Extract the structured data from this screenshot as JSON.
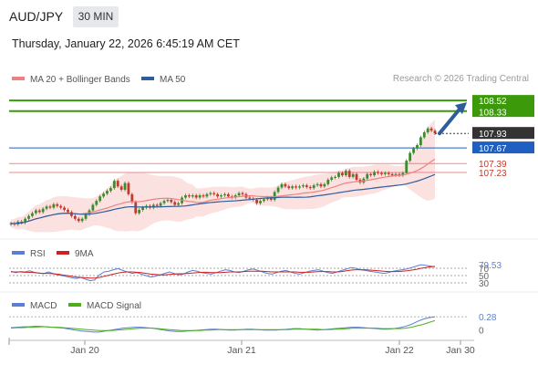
{
  "header": {
    "symbol": "AUD/JPY",
    "timeframe": "30 MIN",
    "datetime": "Thursday, January 22, 2026 6:45:19 AM CET",
    "credit": "Research © 2026 Trading Central"
  },
  "colors": {
    "up": "#3c8a2e",
    "down": "#c0392b",
    "ma20": "#f08080",
    "band_fill": "#fcdcdc",
    "ma50": "#2e5d9c",
    "resistance": "#3c9a0a",
    "support": "#e06060",
    "pivot": "#1f5fbf",
    "arrow": "#2e5d9c",
    "rsi": "#5b7fd4",
    "rsi_ma": "#d02020",
    "macd": "#5b7fd4",
    "macd_signal": "#4caf1a"
  },
  "chart_data": [
    {
      "type": "candlestick",
      "legend": [
        {
          "name": "MA 20 + Bollinger Bands",
          "color": "#f08080"
        },
        {
          "name": "MA 50",
          "color": "#2e5d9c"
        }
      ],
      "ylim": [
        106.2,
        108.62
      ],
      "x_ticks": [
        "Jan 20",
        "Jan 21",
        "Jan 22",
        "Jan 30"
      ],
      "price_labels": [
        {
          "value": 108.52,
          "text": "108.52",
          "style": "resistance-box"
        },
        {
          "value": 108.33,
          "text": "108.33",
          "style": "resistance-box-hidden"
        },
        {
          "value": 107.93,
          "text": "107.93",
          "style": "last-price"
        },
        {
          "value": 107.67,
          "text": "107.67",
          "style": "pivot"
        },
        {
          "value": 107.39,
          "text": "107.39",
          "style": "support"
        },
        {
          "value": 107.23,
          "text": "107.23",
          "style": "support"
        }
      ],
      "levels": {
        "resistance": [
          108.52,
          108.33
        ],
        "pivot": 107.67,
        "support": [
          107.39,
          107.23
        ]
      },
      "closes": [
        106.32,
        106.3,
        106.35,
        106.33,
        106.4,
        106.45,
        106.5,
        106.55,
        106.52,
        106.58,
        106.62,
        106.6,
        106.66,
        106.63,
        106.6,
        106.56,
        106.52,
        106.45,
        106.4,
        106.36,
        106.4,
        106.48,
        106.55,
        106.65,
        106.72,
        106.8,
        106.85,
        106.9,
        106.95,
        107.08,
        106.98,
        106.92,
        107.04,
        106.84,
        106.7,
        106.5,
        106.56,
        106.6,
        106.63,
        106.6,
        106.65,
        106.63,
        106.68,
        106.72,
        106.74,
        106.7,
        106.65,
        106.68,
        106.78,
        106.82,
        106.8,
        106.82,
        106.78,
        106.82,
        106.8,
        106.84,
        106.86,
        106.84,
        106.8,
        106.82,
        106.84,
        106.8,
        106.78,
        106.82,
        106.86,
        106.84,
        106.78,
        106.76,
        106.74,
        106.68,
        106.72,
        106.75,
        106.78,
        106.74,
        106.88,
        106.96,
        107.02,
        106.98,
        106.95,
        106.98,
        106.96,
        106.98,
        107.0,
        106.97,
        106.95,
        107.0,
        107.02,
        106.98,
        107.02,
        107.1,
        107.14,
        107.15,
        107.22,
        107.18,
        107.26,
        107.15,
        107.2,
        107.1,
        107.05,
        107.12,
        107.2,
        107.18,
        107.24,
        107.22,
        107.2,
        107.22,
        107.2,
        107.18,
        107.2,
        107.18,
        107.22,
        107.44,
        107.58,
        107.66,
        107.72,
        107.86,
        107.95,
        108.02,
        107.98,
        107.93
      ]
    },
    {
      "type": "line",
      "legend": [
        {
          "name": "RSI",
          "color": "#5b7fd4"
        },
        {
          "name": "9MA",
          "color": "#d02020"
        }
      ],
      "ylim": [
        20,
        90
      ],
      "y_labels": [
        {
          "value": 79.53,
          "text": "79.53"
        },
        {
          "value": 70,
          "text": "70"
        },
        {
          "value": 50,
          "text": "50"
        },
        {
          "value": 30,
          "text": "30"
        }
      ],
      "rsi": [
        62,
        58,
        61,
        60,
        63,
        59,
        57,
        55,
        60,
        56,
        52,
        50,
        47,
        44,
        42,
        45,
        40,
        36,
        38,
        52,
        60,
        62,
        66,
        69,
        64,
        60,
        56,
        58,
        54,
        50,
        46,
        48,
        52,
        56,
        60,
        56,
        52,
        54,
        60,
        64,
        62,
        58,
        56,
        54,
        58,
        62,
        66,
        64,
        60,
        58,
        62,
        66,
        68,
        64,
        60,
        56,
        54,
        58,
        62,
        64,
        60,
        56,
        54,
        58,
        62,
        64,
        66,
        62,
        58,
        56,
        60,
        64,
        68,
        72,
        70,
        66,
        64,
        62,
        60,
        58,
        56,
        58,
        62,
        64,
        66,
        68,
        72,
        76,
        79.53,
        78,
        76,
        74
      ],
      "ma9": [
        60,
        60,
        60,
        59,
        59,
        58,
        57,
        56,
        56,
        55,
        54,
        52,
        50,
        48,
        46,
        45,
        44,
        43,
        43,
        45,
        48,
        51,
        54,
        57,
        59,
        60,
        60,
        59,
        58,
        56,
        54,
        53,
        52,
        52,
        53,
        54,
        55,
        55,
        56,
        57,
        58,
        59,
        59,
        58,
        58,
        58,
        59,
        60,
        60,
        60,
        61,
        62,
        62,
        62,
        62,
        61,
        60,
        60,
        60,
        60,
        60,
        60,
        59,
        59,
        59,
        60,
        61,
        61,
        61,
        60,
        60,
        61,
        63,
        65,
        66,
        66,
        66,
        65,
        64,
        63,
        62,
        61,
        61,
        61,
        62,
        63,
        65,
        67,
        70,
        72,
        74,
        75
      ]
    },
    {
      "type": "line",
      "legend": [
        {
          "name": "MACD",
          "color": "#5b7fd4"
        },
        {
          "name": "MACD Signal",
          "color": "#4caf1a"
        }
      ],
      "ylim": [
        -0.12,
        0.34
      ],
      "y_labels": [
        {
          "value": 0.28,
          "text": "0.28"
        },
        {
          "value": 0,
          "text": "0"
        }
      ],
      "macd": [
        0.05,
        0.06,
        0.07,
        0.07,
        0.08,
        0.08,
        0.07,
        0.06,
        0.05,
        0.04,
        0.02,
        0.0,
        -0.02,
        -0.03,
        -0.04,
        -0.04,
        -0.02,
        0.0,
        0.02,
        0.04,
        0.05,
        0.06,
        0.06,
        0.05,
        0.04,
        0.02,
        0.0,
        -0.02,
        -0.03,
        -0.03,
        -0.02,
        -0.01,
        0.0,
        0.01,
        0.02,
        0.02,
        0.01,
        0.0,
        0.0,
        0.01,
        0.02,
        0.02,
        0.01,
        0.0,
        0.0,
        0.0,
        0.01,
        0.02,
        0.03,
        0.03,
        0.02,
        0.01,
        0.0,
        0.01,
        0.02,
        0.03,
        0.04,
        0.05,
        0.06,
        0.06,
        0.05,
        0.04,
        0.03,
        0.02,
        0.02,
        0.03,
        0.05,
        0.08,
        0.12,
        0.18,
        0.23,
        0.26,
        0.28
      ],
      "signal": [
        0.04,
        0.05,
        0.05,
        0.06,
        0.06,
        0.07,
        0.07,
        0.06,
        0.06,
        0.05,
        0.04,
        0.03,
        0.02,
        0.01,
        0.0,
        -0.01,
        -0.01,
        -0.01,
        0.0,
        0.01,
        0.02,
        0.03,
        0.04,
        0.04,
        0.04,
        0.03,
        0.02,
        0.01,
        0.0,
        -0.01,
        -0.01,
        -0.01,
        -0.01,
        0.0,
        0.0,
        0.01,
        0.01,
        0.01,
        0.01,
        0.01,
        0.01,
        0.01,
        0.01,
        0.01,
        0.01,
        0.01,
        0.01,
        0.01,
        0.02,
        0.02,
        0.02,
        0.02,
        0.02,
        0.01,
        0.01,
        0.02,
        0.02,
        0.03,
        0.04,
        0.04,
        0.04,
        0.04,
        0.04,
        0.03,
        0.03,
        0.03,
        0.03,
        0.04,
        0.06,
        0.09,
        0.12,
        0.16,
        0.2
      ]
    }
  ]
}
